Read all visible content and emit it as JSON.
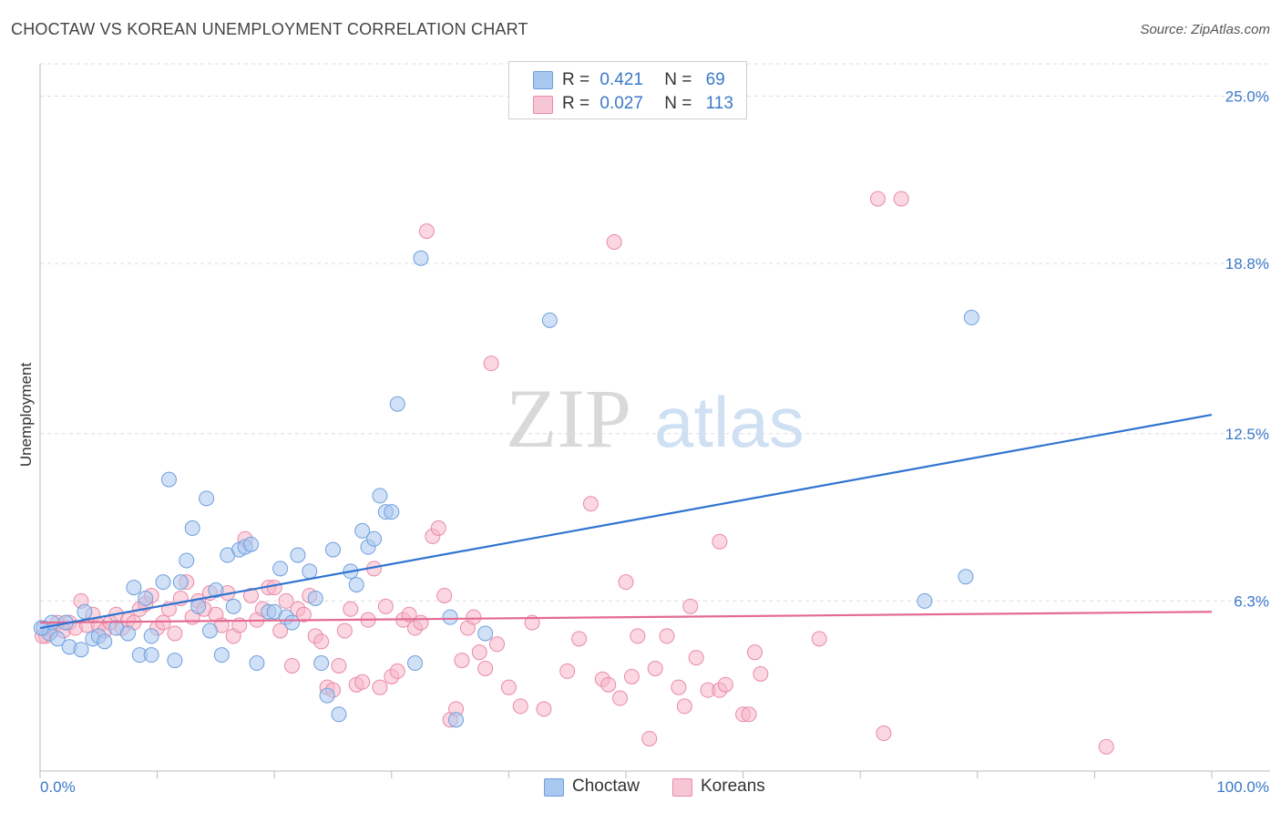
{
  "title": "CHOCTAW VS KOREAN UNEMPLOYMENT CORRELATION CHART",
  "source": "Source: ZipAtlas.com",
  "watermark": {
    "zip": "ZIP",
    "atlas": "atlas"
  },
  "legend": {
    "rows": [
      {
        "r_label": "R =",
        "r_value": "0.421",
        "n_label": "N =",
        "n_value": "69"
      },
      {
        "r_label": "R =",
        "r_value": "0.027",
        "n_label": "N =",
        "n_value": "113"
      }
    ]
  },
  "bottom_legend": [
    "Choctaw",
    "Koreans"
  ],
  "colors": {
    "choctaw_fill": "#a9c8f0",
    "choctaw_stroke": "#6f9fdc",
    "choctaw_line": "#2f74d0",
    "koreans_fill": "#f7b6c8",
    "koreans_stroke": "#e98aa8",
    "koreans_line": "#e46a93",
    "tick_label": "#3a78c9",
    "grid": "#dddddd"
  },
  "chart_data": {
    "type": "scatter",
    "title": "CHOCTAW VS KOREAN UNEMPLOYMENT CORRELATION CHART",
    "xlabel": "",
    "ylabel": "Unemployment",
    "xlim": [
      0,
      100
    ],
    "ylim": [
      0,
      26.2
    ],
    "x_tick_labels": [
      "0.0%",
      "100.0%"
    ],
    "y_ticks": [
      6.3,
      12.5,
      18.8,
      25.0
    ],
    "y_tick_labels": [
      "6.3%",
      "12.5%",
      "18.8%",
      "25.0%"
    ],
    "grid": true,
    "legend_position": "top-center",
    "series": [
      {
        "name": "Choctaw",
        "r": 0.421,
        "n": 69,
        "trend": {
          "x": [
            0,
            100
          ],
          "y": [
            5.3,
            13.2
          ]
        },
        "points": [
          [
            0.3,
            5.3
          ],
          [
            0.8,
            5.1
          ],
          [
            1.0,
            5.5
          ],
          [
            1.5,
            4.9
          ],
          [
            2.2,
            5.5
          ],
          [
            2.5,
            4.6
          ],
          [
            3.5,
            4.5
          ],
          [
            3.8,
            5.9
          ],
          [
            4.5,
            4.9
          ],
          [
            5.0,
            5.0
          ],
          [
            5.5,
            4.8
          ],
          [
            6.5,
            5.3
          ],
          [
            7.5,
            5.1
          ],
          [
            8.0,
            6.8
          ],
          [
            8.5,
            4.3
          ],
          [
            9.0,
            6.4
          ],
          [
            9.5,
            4.3
          ],
          [
            9.5,
            5.0
          ],
          [
            10.5,
            7.0
          ],
          [
            11.0,
            10.8
          ],
          [
            11.5,
            4.1
          ],
          [
            12.0,
            7.0
          ],
          [
            12.5,
            7.8
          ],
          [
            13.0,
            9.0
          ],
          [
            13.5,
            6.1
          ],
          [
            14.2,
            10.1
          ],
          [
            14.5,
            5.2
          ],
          [
            15.0,
            6.7
          ],
          [
            15.5,
            4.3
          ],
          [
            16.0,
            8.0
          ],
          [
            16.5,
            6.1
          ],
          [
            17.0,
            8.2
          ],
          [
            17.5,
            8.3
          ],
          [
            18.0,
            8.4
          ],
          [
            18.5,
            4.0
          ],
          [
            19.5,
            5.9
          ],
          [
            20.0,
            5.9
          ],
          [
            20.5,
            7.5
          ],
          [
            21.0,
            5.7
          ],
          [
            21.5,
            5.5
          ],
          [
            22.0,
            8.0
          ],
          [
            23.0,
            7.4
          ],
          [
            23.5,
            6.4
          ],
          [
            24.0,
            4.0
          ],
          [
            24.5,
            2.8
          ],
          [
            25.0,
            8.2
          ],
          [
            25.5,
            2.1
          ],
          [
            26.5,
            7.4
          ],
          [
            27.0,
            6.9
          ],
          [
            27.5,
            8.9
          ],
          [
            28.0,
            8.3
          ],
          [
            28.5,
            8.6
          ],
          [
            29.0,
            10.2
          ],
          [
            29.5,
            9.6
          ],
          [
            30.0,
            9.6
          ],
          [
            30.5,
            13.6
          ],
          [
            32.0,
            4.0
          ],
          [
            32.5,
            19.0
          ],
          [
            35.0,
            5.7
          ],
          [
            35.5,
            1.9
          ],
          [
            38.0,
            5.1
          ],
          [
            43.5,
            16.7
          ],
          [
            75.5,
            6.3
          ],
          [
            79.0,
            7.2
          ],
          [
            79.5,
            16.8
          ],
          [
            0.1,
            5.3
          ]
        ]
      },
      {
        "name": "Koreans",
        "r": 0.027,
        "n": 113,
        "trend": {
          "x": [
            0,
            100
          ],
          "y": [
            5.5,
            5.9
          ]
        },
        "points": [
          [
            0.5,
            5.0
          ],
          [
            1.0,
            5.2
          ],
          [
            1.5,
            5.5
          ],
          [
            2.0,
            5.2
          ],
          [
            2.5,
            5.5
          ],
          [
            3.0,
            5.3
          ],
          [
            3.5,
            6.3
          ],
          [
            4.0,
            5.4
          ],
          [
            4.5,
            5.8
          ],
          [
            5.0,
            5.4
          ],
          [
            5.5,
            5.2
          ],
          [
            6.0,
            5.5
          ],
          [
            6.5,
            5.8
          ],
          [
            7.0,
            5.3
          ],
          [
            7.5,
            5.6
          ],
          [
            8.0,
            5.5
          ],
          [
            8.5,
            6.0
          ],
          [
            9.0,
            6.2
          ],
          [
            9.5,
            6.5
          ],
          [
            10.0,
            5.3
          ],
          [
            10.5,
            5.5
          ],
          [
            11.0,
            6.0
          ],
          [
            11.5,
            5.1
          ],
          [
            12.0,
            6.4
          ],
          [
            12.5,
            7.0
          ],
          [
            13.0,
            5.7
          ],
          [
            13.5,
            6.3
          ],
          [
            14.0,
            6.0
          ],
          [
            14.5,
            6.6
          ],
          [
            15.0,
            5.8
          ],
          [
            15.5,
            5.4
          ],
          [
            16.0,
            6.6
          ],
          [
            16.5,
            5.0
          ],
          [
            17.0,
            5.4
          ],
          [
            17.5,
            8.6
          ],
          [
            18.0,
            6.5
          ],
          [
            18.5,
            5.6
          ],
          [
            19.0,
            6.0
          ],
          [
            19.5,
            6.8
          ],
          [
            20.0,
            6.8
          ],
          [
            20.5,
            5.2
          ],
          [
            21.0,
            6.3
          ],
          [
            21.5,
            3.9
          ],
          [
            22.0,
            6.0
          ],
          [
            22.5,
            5.8
          ],
          [
            23.0,
            6.5
          ],
          [
            23.5,
            5.0
          ],
          [
            24.0,
            4.8
          ],
          [
            24.5,
            3.1
          ],
          [
            25.0,
            3.0
          ],
          [
            25.5,
            3.9
          ],
          [
            26.0,
            5.2
          ],
          [
            26.5,
            6.0
          ],
          [
            27.0,
            3.2
          ],
          [
            27.5,
            3.3
          ],
          [
            28.0,
            5.6
          ],
          [
            28.5,
            7.5
          ],
          [
            29.0,
            3.1
          ],
          [
            29.5,
            6.1
          ],
          [
            30.0,
            3.5
          ],
          [
            30.5,
            3.7
          ],
          [
            31.0,
            5.6
          ],
          [
            31.5,
            5.8
          ],
          [
            32.0,
            5.3
          ],
          [
            32.5,
            5.5
          ],
          [
            33.0,
            20.0
          ],
          [
            33.5,
            8.7
          ],
          [
            34.0,
            9.0
          ],
          [
            34.5,
            6.5
          ],
          [
            35.0,
            1.9
          ],
          [
            35.5,
            2.3
          ],
          [
            36.0,
            4.1
          ],
          [
            36.5,
            5.3
          ],
          [
            37.0,
            5.7
          ],
          [
            37.5,
            4.4
          ],
          [
            38.0,
            3.8
          ],
          [
            38.5,
            15.1
          ],
          [
            39.0,
            4.7
          ],
          [
            40.0,
            3.1
          ],
          [
            41.0,
            2.4
          ],
          [
            42.0,
            5.5
          ],
          [
            43.0,
            2.3
          ],
          [
            45.0,
            3.7
          ],
          [
            46.0,
            4.9
          ],
          [
            47.0,
            9.9
          ],
          [
            48.0,
            3.4
          ],
          [
            48.5,
            3.2
          ],
          [
            49.0,
            19.6
          ],
          [
            49.5,
            2.7
          ],
          [
            50.0,
            7.0
          ],
          [
            50.5,
            3.5
          ],
          [
            51.0,
            5.0
          ],
          [
            52.0,
            1.2
          ],
          [
            52.5,
            3.8
          ],
          [
            53.5,
            5.0
          ],
          [
            54.5,
            3.1
          ],
          [
            55.0,
            2.4
          ],
          [
            55.5,
            6.1
          ],
          [
            56.0,
            4.2
          ],
          [
            57.0,
            3.0
          ],
          [
            58.0,
            3.0
          ],
          [
            58.5,
            3.2
          ],
          [
            58.0,
            8.5
          ],
          [
            60.0,
            2.1
          ],
          [
            60.5,
            2.1
          ],
          [
            61.0,
            4.4
          ],
          [
            61.5,
            3.6
          ],
          [
            66.5,
            4.9
          ],
          [
            71.5,
            21.2
          ],
          [
            73.5,
            21.2
          ],
          [
            72.0,
            1.4
          ],
          [
            91.0,
            0.9
          ],
          [
            0.2,
            5.0
          ]
        ]
      }
    ]
  }
}
